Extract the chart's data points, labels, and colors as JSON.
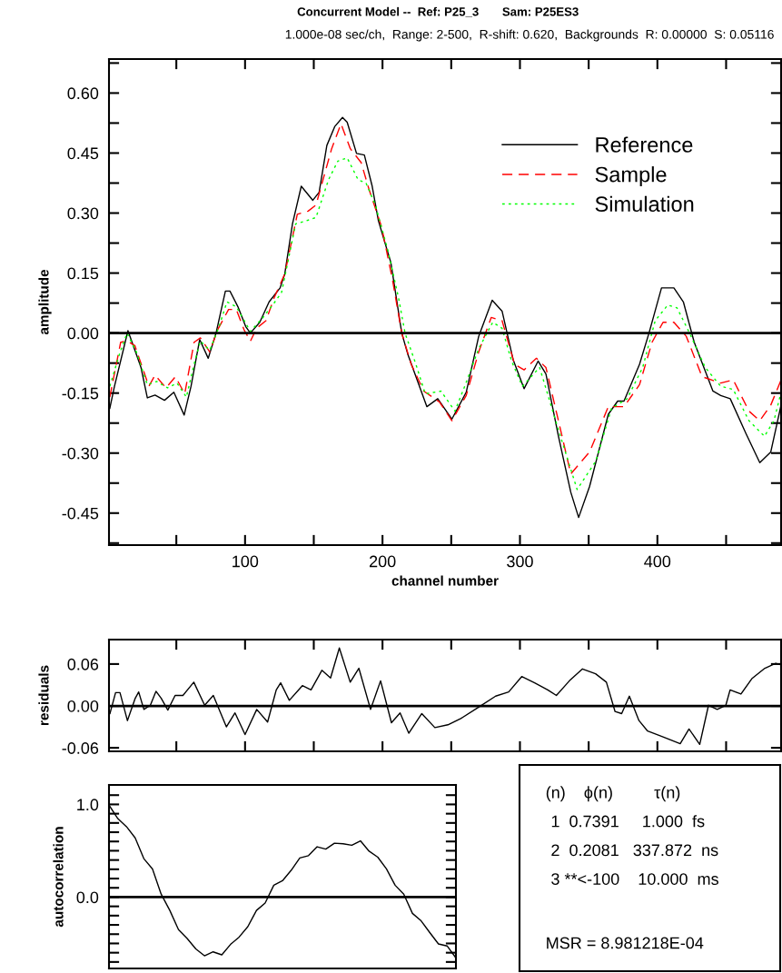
{
  "chart_data": [
    {
      "type": "line",
      "title": "Concurrent Model --  Ref: P25_3       Sam: P25ES3",
      "subtitle": "1.000e-08 sec/ch,  Range: 2-500,  R-shift: 0.620,  Backgrounds  R: 0.00000  S: 0.05116",
      "xlabel": "channel number",
      "ylabel": "amplitude",
      "xlim": [
        1,
        490
      ],
      "ylim": [
        -0.53,
        0.685
      ],
      "xticks": [
        {
          "value": 50,
          "label": null
        },
        {
          "value": 100,
          "label": "100"
        },
        {
          "value": 150,
          "label": null
        },
        {
          "value": 200,
          "label": "200"
        },
        {
          "value": 250,
          "label": null
        },
        {
          "value": 300,
          "label": "300"
        },
        {
          "value": 350,
          "label": null
        },
        {
          "value": 400,
          "label": "400"
        },
        {
          "value": 450,
          "label": null
        }
      ],
      "yticks": [
        {
          "value": 0.675,
          "label": null
        },
        {
          "value": 0.6,
          "label": "0.60"
        },
        {
          "value": 0.525,
          "label": null
        },
        {
          "value": 0.45,
          "label": "0.45"
        },
        {
          "value": 0.375,
          "label": null
        },
        {
          "value": 0.3,
          "label": "0.30"
        },
        {
          "value": 0.225,
          "label": null
        },
        {
          "value": 0.15,
          "label": "0.15"
        },
        {
          "value": 0.075,
          "label": null
        },
        {
          "value": 0,
          "label": "0.00"
        },
        {
          "value": -0.075,
          "label": null
        },
        {
          "value": -0.15,
          "label": "-0.15"
        },
        {
          "value": -0.225,
          "label": null
        },
        {
          "value": -0.3,
          "label": "-0.30"
        },
        {
          "value": -0.375,
          "label": null
        },
        {
          "value": -0.45,
          "label": "-0.45"
        },
        {
          "value": -0.525,
          "label": null
        }
      ],
      "ref_lines": [
        {
          "axis": "y",
          "value": 0,
          "color": "#000000"
        }
      ],
      "legend": "top right",
      "grid": false,
      "series": [
        {
          "name": "Reference",
          "color": "#000000",
          "line_style": "solid",
          "x": [
            1.6,
            5,
            14.8,
            24.3,
            28.9,
            34.5,
            41.4,
            48.2,
            55.7,
            60.7,
            67,
            73.2,
            78.9,
            85.7,
            89,
            94.8,
            100.5,
            103.9,
            110.7,
            117.5,
            125.5,
            128.9,
            134.5,
            140.9,
            149.3,
            153.9,
            159.5,
            165.2,
            170.9,
            174.3,
            181.1,
            186.8,
            192.5,
            197,
            206.1,
            214,
            218.6,
            232.3,
            240.2,
            250.5,
            260.9,
            270,
            279.8,
            287,
            295,
            303,
            313.2,
            318.9,
            328,
            337,
            342.7,
            350.7,
            364.3,
            371.1,
            375.7,
            387,
            393.9,
            403,
            412,
            418.9,
            426.8,
            440.4,
            446.1,
            453,
            464.3,
            474.5,
            482.5,
            490
          ],
          "values": [
            -0.188,
            -0.133,
            0.006,
            -0.086,
            -0.162,
            -0.155,
            -0.168,
            -0.148,
            -0.205,
            -0.133,
            -0.016,
            -0.063,
            0,
            0.105,
            0.105,
            0.066,
            0.016,
            0,
            0.027,
            0.078,
            0.113,
            0.148,
            0.273,
            0.367,
            0.332,
            0.352,
            0.469,
            0.516,
            0.539,
            0.527,
            0.449,
            0.445,
            0.367,
            0.281,
            0.176,
            0,
            -0.055,
            -0.184,
            -0.164,
            -0.215,
            -0.148,
            -0.008,
            0.082,
            0.055,
            -0.066,
            -0.139,
            -0.07,
            -0.102,
            -0.258,
            -0.398,
            -0.461,
            -0.383,
            -0.203,
            -0.17,
            -0.17,
            -0.078,
            0,
            0.113,
            0.113,
            0.078,
            -0.023,
            -0.145,
            -0.156,
            -0.164,
            -0.25,
            -0.324,
            -0.297,
            -0.18
          ]
        },
        {
          "name": "Sample",
          "color": "#ff0000",
          "line_style": "dashed",
          "x": [
            1.6,
            9.5,
            14.1,
            19.8,
            30,
            34.5,
            42.5,
            49.3,
            56.1,
            62.9,
            67.5,
            74.3,
            80,
            88,
            93.6,
            99.3,
            103.9,
            108.4,
            115.2,
            120.9,
            128.9,
            138,
            145.9,
            151.6,
            163,
            169.8,
            176.6,
            184.5,
            190.2,
            199.3,
            207.3,
            214,
            220.9,
            230,
            241.4,
            250.5,
            260.9,
            270,
            279.1,
            287,
            296.1,
            303,
            312,
            318.9,
            328,
            337,
            350.7,
            364.3,
            375.7,
            387,
            396.1,
            404.1,
            412,
            421,
            432.5,
            446.1,
            455.2,
            466.6,
            474.5,
            482.5,
            490
          ],
          "values": [
            -0.16,
            -0.023,
            -0.02,
            -0.031,
            -0.133,
            -0.105,
            -0.137,
            -0.109,
            -0.152,
            -0.023,
            -0.012,
            -0.047,
            0.008,
            0.059,
            0.059,
            0.008,
            -0.02,
            0.012,
            0.031,
            0.086,
            0.148,
            0.297,
            0.305,
            0.32,
            0.461,
            0.523,
            0.461,
            0.426,
            0.359,
            0.266,
            0.133,
            0,
            -0.078,
            -0.145,
            -0.172,
            -0.219,
            -0.156,
            -0.047,
            0.039,
            0.031,
            -0.078,
            -0.092,
            -0.063,
            -0.086,
            -0.219,
            -0.352,
            -0.297,
            -0.184,
            -0.184,
            -0.129,
            -0.023,
            0.027,
            0.027,
            -0.008,
            -0.109,
            -0.125,
            -0.117,
            -0.195,
            -0.219,
            -0.18,
            -0.117
          ]
        },
        {
          "name": "Simulation",
          "color": "#00ff00",
          "line_style": "dotted",
          "x": [
            1.6,
            8.4,
            14.1,
            20.9,
            28.9,
            35.7,
            43.6,
            50.5,
            57.3,
            62.9,
            67.5,
            74.3,
            81.1,
            86.8,
            93.6,
            103.9,
            113,
            120.9,
            126.6,
            136.8,
            144.8,
            151.6,
            160.7,
            167.5,
            174.3,
            182.3,
            188,
            194.8,
            203.9,
            211.8,
            216.4,
            224.3,
            231.1,
            242.5,
            252.7,
            259.8,
            270,
            280.2,
            287,
            293.9,
            301.8,
            314.3,
            328,
            341.6,
            355.2,
            366.6,
            378,
            389.3,
            398.4,
            407.5,
            414.3,
            423.4,
            434.8,
            446.1,
            455.2,
            466.6,
            477.9,
            484.8,
            490
          ],
          "values": [
            -0.133,
            -0.055,
            0,
            -0.047,
            -0.129,
            -0.121,
            -0.137,
            -0.125,
            -0.16,
            -0.078,
            -0.02,
            -0.043,
            0.016,
            0.078,
            0.066,
            0.004,
            0.039,
            0.074,
            0.102,
            0.273,
            0.281,
            0.289,
            0.383,
            0.43,
            0.438,
            0.383,
            0.375,
            0.32,
            0.207,
            0.086,
            0,
            -0.078,
            -0.152,
            -0.145,
            -0.195,
            -0.133,
            -0.039,
            0.027,
            0.012,
            -0.07,
            -0.133,
            -0.086,
            -0.242,
            -0.391,
            -0.32,
            -0.188,
            -0.164,
            -0.086,
            0.031,
            0.07,
            0.063,
            0,
            -0.086,
            -0.133,
            -0.141,
            -0.219,
            -0.258,
            -0.219,
            -0.148
          ]
        }
      ]
    },
    {
      "type": "line",
      "ylabel": "residuals",
      "xlim": [
        1,
        490
      ],
      "ylim": [
        -0.065,
        0.095
      ],
      "tick_labels": "y",
      "grid": false,
      "xticks": [
        {
          "value": 50,
          "label": null
        },
        {
          "value": 100,
          "label": null
        },
        {
          "value": 150,
          "label": null
        },
        {
          "value": 200,
          "label": null
        },
        {
          "value": 250,
          "label": null
        },
        {
          "value": 300,
          "label": null
        },
        {
          "value": 350,
          "label": null
        },
        {
          "value": 400,
          "label": null
        },
        {
          "value": 450,
          "label": null
        }
      ],
      "yticks": [
        {
          "value": 0.06,
          "label": "0.06"
        },
        {
          "value": 0,
          "label": "0.00"
        },
        {
          "value": -0.06,
          "label": "-0.06"
        }
      ],
      "ref_lines": [
        {
          "axis": "y",
          "value": 0,
          "color": "#000000"
        }
      ],
      "series": [
        {
          "color": "#000000",
          "line_style": "solid",
          "x": [
            1.7,
            5.8,
            9,
            14.4,
            20.1,
            22.6,
            26.4,
            31.1,
            35.2,
            39,
            43.8,
            49.1,
            54.8,
            62.7,
            70.6,
            76.9,
            86.4,
            92.7,
            100,
            108.5,
            116.4,
            122.7,
            125.9,
            132.2,
            141.7,
            148,
            155.9,
            162.2,
            168.6,
            176.5,
            182.8,
            191.3,
            198.6,
            206.5,
            212.8,
            219.1,
            228.6,
            238.1,
            247.6,
            257,
            269.7,
            282.3,
            291.8,
            301.3,
            310.7,
            320.2,
            326.5,
            336,
            345.5,
            355,
            362.9,
            369.2,
            374,
            379.6,
            386.6,
            392.9,
            402.4,
            408.7,
            416.6,
            423,
            430.8,
            437.2,
            443.5,
            449.8,
            452.9,
            460.8,
            468.7,
            478.2,
            486.1,
            490
          ],
          "values": [
            -0.011,
            0.019,
            0.019,
            -0.021,
            0.011,
            0.02,
            -0.005,
            0.001,
            0.021,
            0.011,
            -0.006,
            0.015,
            0.015,
            0.034,
            0.001,
            0.015,
            -0.03,
            -0.01,
            -0.041,
            -0.005,
            -0.023,
            0.023,
            0.033,
            0.008,
            0.029,
            0.023,
            0.051,
            0.04,
            0.083,
            0.034,
            0.054,
            -0.005,
            0.036,
            -0.024,
            -0.01,
            -0.039,
            -0.011,
            -0.031,
            -0.027,
            -0.018,
            -0.002,
            0.014,
            0.02,
            0.042,
            0.033,
            0.023,
            0.015,
            0.036,
            0.053,
            0.046,
            0.034,
            -0.008,
            -0.011,
            0.014,
            -0.021,
            -0.036,
            -0.043,
            -0.048,
            -0.054,
            -0.033,
            -0.055,
            0.001,
            -0.005,
            0.001,
            0.023,
            0.017,
            0.039,
            0.054,
            0.061,
            0.059
          ]
        }
      ]
    },
    {
      "type": "line",
      "ylabel": "autocorrelation",
      "ylim": [
        -0.77,
        1.21
      ],
      "tick_labels": "y",
      "grid": false,
      "categories": [
        null,
        null,
        null,
        null,
        null,
        null,
        null,
        null,
        null,
        null,
        null,
        null,
        null,
        null,
        null,
        null,
        null,
        null,
        null,
        null,
        null,
        null,
        null,
        null,
        null,
        null,
        null,
        null,
        null,
        null,
        null,
        null,
        null,
        null,
        null,
        null,
        null,
        null,
        null,
        null,
        null
      ],
      "yticks": [
        {
          "value": 1.1,
          "label": null
        },
        {
          "value": 1.0,
          "label": "1.0"
        },
        {
          "value": 0.9,
          "label": null
        },
        {
          "value": 0.8,
          "label": null
        },
        {
          "value": 0.7,
          "label": null
        },
        {
          "value": 0.6,
          "label": null
        },
        {
          "value": 0.5,
          "label": null
        },
        {
          "value": 0.4,
          "label": null
        },
        {
          "value": 0.3,
          "label": null
        },
        {
          "value": 0.2,
          "label": null
        },
        {
          "value": 0.1,
          "label": null
        },
        {
          "value": 0.0,
          "label": "0.0"
        },
        {
          "value": -0.1,
          "label": null
        },
        {
          "value": -0.2,
          "label": null
        },
        {
          "value": -0.3,
          "label": null
        },
        {
          "value": -0.4,
          "label": null
        },
        {
          "value": -0.5,
          "label": null
        },
        {
          "value": -0.6,
          "label": null
        },
        {
          "value": -0.7,
          "label": null
        }
      ],
      "ref_lines": [
        {
          "axis": "y",
          "value": 0,
          "color": "#000000"
        }
      ],
      "series": [
        {
          "color": "#000000",
          "line_style": "solid",
          "values": [
            0.99,
            0.847,
            0.76,
            0.639,
            0.415,
            0.304,
            0.032,
            -0.144,
            -0.351,
            -0.447,
            -0.559,
            -0.633,
            -0.591,
            -0.623,
            -0.511,
            -0.431,
            -0.319,
            -0.144,
            -0.064,
            0.128,
            0.176,
            0.288,
            0.422,
            0.447,
            0.543,
            0.518,
            0.581,
            0.575,
            0.559,
            0.607,
            0.495,
            0.431,
            0.304,
            0.128,
            0.032,
            -0.176,
            -0.256,
            -0.383,
            -0.505,
            -0.527,
            -0.655
          ]
        }
      ]
    },
    {
      "type": "other",
      "annotations": [
        "(n)    ϕ(n)         τ(n)",
        "1  0.7391     1.000  fs",
        "2  0.2081   337.872  ns",
        "3 **<-100    10.000  ms",
        "MSR = 8.981218E-04"
      ]
    }
  ]
}
